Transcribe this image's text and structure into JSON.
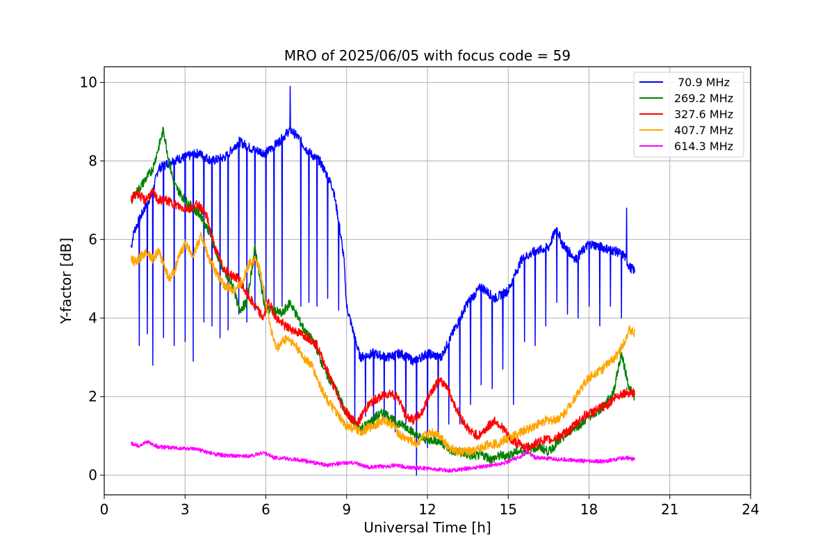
{
  "chart_data": {
    "type": "line",
    "title": "MRO of 2025/06/05 with focus code = 59",
    "xlabel": "Universal Time [h]",
    "ylabel": "Y-factor [dB]",
    "xlim": [
      0,
      24
    ],
    "ylim": [
      -0.5,
      10.4
    ],
    "xticks": [
      0,
      3,
      6,
      9,
      12,
      15,
      18,
      21,
      24
    ],
    "yticks": [
      0,
      2,
      4,
      6,
      8,
      10
    ],
    "grid": true,
    "legend_position": "top-right",
    "series": [
      {
        "name": " 70.9 MHz",
        "color": "#0000ff",
        "dips": true,
        "x": [
          1.0,
          1.1,
          1.5,
          1.8,
          2.0,
          2.5,
          3.0,
          3.5,
          4.0,
          4.5,
          5.0,
          5.5,
          6.0,
          6.5,
          6.9,
          7.2,
          7.5,
          7.8,
          8.0,
          8.3,
          8.5,
          8.7,
          8.9,
          9.0,
          9.5,
          10.0,
          10.5,
          11.0,
          11.5,
          12.0,
          12.5,
          13.0,
          13.5,
          14.0,
          14.5,
          15.0,
          15.5,
          16.0,
          16.5,
          16.8,
          17.0,
          17.5,
          18.0,
          18.5,
          19.0,
          19.3,
          19.5,
          19.7
        ],
        "y": [
          5.8,
          6.2,
          6.8,
          7.2,
          7.8,
          8.0,
          8.1,
          8.2,
          8.0,
          8.1,
          8.5,
          8.3,
          8.2,
          8.5,
          8.8,
          8.6,
          8.3,
          8.1,
          8.0,
          7.6,
          7.3,
          6.5,
          5.5,
          4.3,
          3.0,
          3.1,
          3.0,
          3.1,
          2.9,
          3.1,
          3.0,
          3.7,
          4.4,
          4.8,
          4.5,
          4.7,
          5.5,
          5.7,
          5.8,
          6.3,
          5.9,
          5.5,
          5.9,
          5.8,
          5.7,
          5.6,
          5.3,
          5.2
        ],
        "dip_x": [
          1.3,
          1.6,
          1.8,
          2.2,
          2.6,
          3.0,
          3.3,
          3.7,
          4.0,
          4.3,
          4.6,
          5.0,
          5.3,
          5.6,
          6.0,
          6.3,
          6.6,
          6.9,
          7.3,
          7.6,
          7.9,
          8.3,
          8.7,
          9.3,
          9.7,
          10.0,
          10.4,
          10.8,
          11.2,
          11.6,
          12.0,
          12.4,
          12.8,
          13.2,
          13.6,
          14.0,
          14.4,
          14.8,
          15.2,
          15.6,
          16.0,
          16.4,
          16.8,
          17.2,
          17.6,
          18.0,
          18.4,
          18.8,
          19.2
        ],
        "dip_y": [
          3.3,
          3.6,
          2.8,
          3.5,
          3.3,
          3.4,
          2.9,
          3.9,
          3.8,
          3.5,
          3.7,
          4.1,
          3.9,
          4.2,
          4.4,
          4.3,
          4.3,
          4.2,
          4.3,
          4.4,
          4.3,
          4.5,
          4.2,
          1.3,
          1.5,
          1.2,
          1.4,
          1.1,
          1.3,
          0.0,
          0.7,
          1.0,
          1.3,
          1.3,
          1.8,
          2.3,
          2.2,
          2.7,
          1.8,
          3.4,
          3.3,
          3.8,
          4.4,
          4.1,
          4.0,
          4.3,
          3.8,
          4.3,
          4.0
        ],
        "spike_x": [
          6.9,
          19.4
        ],
        "spike_y": [
          9.9,
          6.8
        ]
      },
      {
        "name": "269.2 MHz",
        "color": "#008000",
        "x": [
          1.0,
          1.2,
          1.5,
          1.8,
          2.0,
          2.2,
          2.4,
          2.6,
          2.8,
          3.0,
          3.3,
          3.6,
          3.9,
          4.2,
          4.5,
          4.8,
          5.0,
          5.3,
          5.6,
          5.8,
          6.0,
          6.3,
          6.6,
          6.9,
          7.2,
          7.5,
          7.8,
          8.0,
          8.3,
          8.6,
          8.9,
          9.2,
          9.5,
          9.8,
          10.1,
          10.4,
          10.7,
          11.0,
          11.3,
          11.6,
          12.0,
          12.3,
          12.6,
          12.9,
          13.2,
          13.5,
          13.8,
          14.1,
          14.4,
          14.7,
          15.0,
          15.3,
          15.6,
          15.9,
          16.2,
          16.5,
          16.8,
          17.1,
          17.4,
          17.7,
          18.0,
          18.3,
          18.6,
          18.9,
          19.2,
          19.5,
          19.7
        ],
        "y": [
          7.0,
          7.2,
          7.5,
          7.8,
          8.3,
          8.8,
          8.0,
          7.4,
          7.2,
          7.0,
          6.8,
          6.6,
          6.2,
          5.6,
          5.1,
          4.8,
          4.2,
          4.4,
          5.8,
          4.9,
          4.2,
          4.2,
          4.1,
          4.4,
          4.0,
          3.6,
          3.4,
          3.0,
          2.5,
          2.2,
          1.7,
          1.4,
          1.2,
          1.3,
          1.5,
          1.6,
          1.4,
          1.3,
          1.2,
          1.0,
          0.9,
          0.9,
          0.8,
          0.6,
          0.6,
          0.5,
          0.5,
          0.5,
          0.4,
          0.5,
          0.5,
          0.6,
          0.6,
          0.7,
          0.7,
          0.6,
          0.8,
          1.0,
          1.2,
          1.3,
          1.5,
          1.6,
          1.8,
          2.1,
          3.1,
          2.2,
          2.0
        ]
      },
      {
        "name": "327.6 MHz",
        "color": "#ff0000",
        "x": [
          1.0,
          1.2,
          1.5,
          1.8,
          2.0,
          2.3,
          2.6,
          2.9,
          3.2,
          3.5,
          3.8,
          4.1,
          4.4,
          4.7,
          5.0,
          5.3,
          5.6,
          5.9,
          6.1,
          6.4,
          6.7,
          7.0,
          7.3,
          7.6,
          7.9,
          8.2,
          8.5,
          8.8,
          9.1,
          9.4,
          9.7,
          10.0,
          10.3,
          10.6,
          10.9,
          11.2,
          11.5,
          11.8,
          12.1,
          12.4,
          12.7,
          13.0,
          13.3,
          13.6,
          13.9,
          14.2,
          14.5,
          14.8,
          15.1,
          15.4,
          15.7,
          16.0,
          16.3,
          16.6,
          16.9,
          17.2,
          17.5,
          17.8,
          18.1,
          18.4,
          18.7,
          19.0,
          19.3,
          19.5,
          19.7
        ],
        "y": [
          7.0,
          7.2,
          7.0,
          7.2,
          7.0,
          7.0,
          6.9,
          6.8,
          6.8,
          6.9,
          6.6,
          5.8,
          5.3,
          5.1,
          5.0,
          4.6,
          4.3,
          4.0,
          4.4,
          4.0,
          3.8,
          3.7,
          3.6,
          3.5,
          3.3,
          2.8,
          2.3,
          1.8,
          1.5,
          1.3,
          1.7,
          1.9,
          2.0,
          2.1,
          2.0,
          1.5,
          1.4,
          1.6,
          2.1,
          2.4,
          2.3,
          1.8,
          1.4,
          1.1,
          1.0,
          1.2,
          1.4,
          1.2,
          0.9,
          0.8,
          0.7,
          0.8,
          0.9,
          0.9,
          1.0,
          1.1,
          1.3,
          1.5,
          1.6,
          1.7,
          1.8,
          2.0,
          2.1,
          2.1,
          2.1
        ]
      },
      {
        "name": "407.7 MHz",
        "color": "#ffa500",
        "x": [
          1.0,
          1.2,
          1.4,
          1.6,
          1.8,
          2.0,
          2.2,
          2.4,
          2.6,
          2.8,
          3.0,
          3.3,
          3.6,
          3.9,
          4.2,
          4.5,
          4.8,
          5.1,
          5.4,
          5.6,
          5.8,
          6.0,
          6.2,
          6.4,
          6.6,
          6.8,
          7.1,
          7.4,
          7.7,
          8.0,
          8.3,
          8.6,
          8.9,
          9.2,
          9.5,
          9.8,
          10.1,
          10.4,
          10.7,
          11.0,
          11.3,
          11.6,
          11.9,
          12.2,
          12.5,
          12.8,
          13.1,
          13.4,
          13.7,
          14.0,
          14.3,
          14.6,
          14.9,
          15.2,
          15.5,
          15.8,
          16.1,
          16.4,
          16.7,
          17.0,
          17.3,
          17.6,
          17.9,
          18.2,
          18.5,
          18.8,
          19.1,
          19.3,
          19.5,
          19.7
        ],
        "y": [
          5.5,
          5.4,
          5.6,
          5.7,
          5.5,
          5.7,
          5.4,
          5.0,
          5.2,
          5.6,
          5.9,
          5.6,
          6.1,
          5.5,
          5.1,
          4.8,
          4.7,
          4.9,
          5.4,
          5.5,
          5.2,
          4.4,
          3.7,
          3.2,
          3.4,
          3.5,
          3.3,
          3.0,
          2.8,
          2.3,
          1.9,
          1.6,
          1.3,
          1.2,
          1.1,
          1.2,
          1.3,
          1.4,
          1.3,
          1.0,
          0.9,
          0.8,
          1.0,
          1.1,
          1.0,
          0.7,
          0.6,
          0.6,
          0.6,
          0.7,
          0.8,
          0.8,
          0.9,
          1.0,
          1.1,
          1.2,
          1.3,
          1.4,
          1.4,
          1.5,
          1.8,
          2.1,
          2.4,
          2.6,
          2.7,
          2.9,
          3.1,
          3.4,
          3.7,
          3.6
        ]
      },
      {
        "name": "614.3 MHz",
        "color": "#ff00ff",
        "x": [
          1.0,
          1.3,
          1.6,
          2.0,
          2.5,
          3.0,
          3.5,
          4.0,
          4.5,
          5.0,
          5.5,
          5.9,
          6.3,
          6.8,
          7.3,
          7.8,
          8.3,
          8.8,
          9.3,
          9.8,
          10.3,
          10.8,
          11.3,
          11.8,
          12.3,
          12.8,
          13.3,
          13.8,
          14.3,
          14.8,
          15.1,
          15.4,
          15.7,
          16.0,
          16.5,
          17.0,
          17.5,
          18.0,
          18.5,
          19.0,
          19.4,
          19.7
        ],
        "y": [
          0.8,
          0.75,
          0.85,
          0.72,
          0.7,
          0.68,
          0.65,
          0.55,
          0.5,
          0.48,
          0.5,
          0.58,
          0.45,
          0.42,
          0.38,
          0.32,
          0.25,
          0.3,
          0.32,
          0.2,
          0.22,
          0.25,
          0.2,
          0.18,
          0.15,
          0.12,
          0.15,
          0.2,
          0.25,
          0.3,
          0.38,
          0.45,
          0.6,
          0.45,
          0.42,
          0.4,
          0.38,
          0.35,
          0.35,
          0.4,
          0.45,
          0.4
        ]
      }
    ]
  }
}
